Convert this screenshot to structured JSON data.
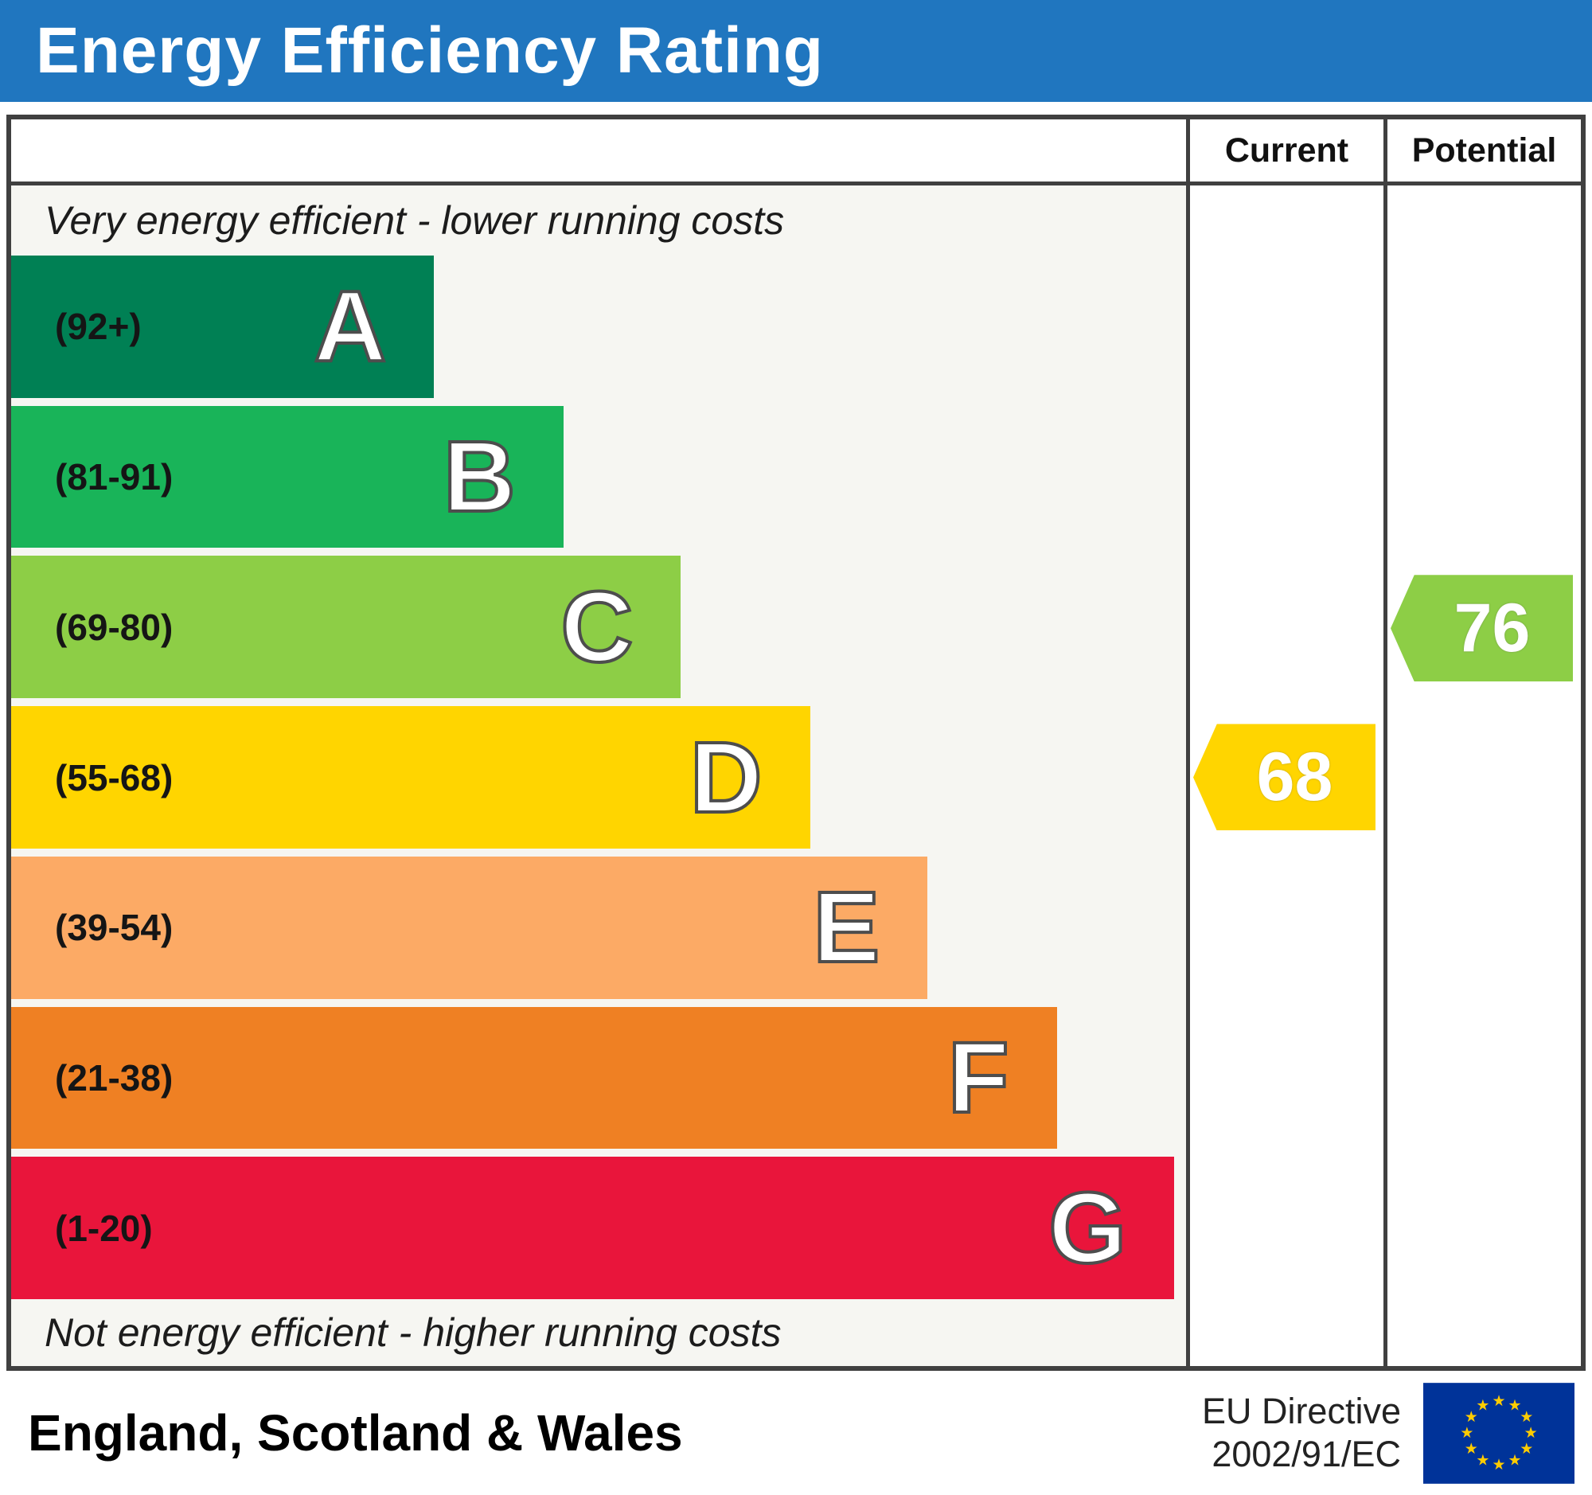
{
  "header": {
    "title": "Energy Efficiency Rating"
  },
  "table": {
    "column_headers": {
      "current": "Current",
      "potential": "Potential"
    },
    "caption_top": "Very energy efficient - lower running costs",
    "caption_bottom": "Not energy efficient - higher running costs"
  },
  "chart_data": {
    "type": "bar",
    "title": "Energy Efficiency Rating",
    "bands": [
      {
        "letter": "A",
        "range": "(92+)",
        "color": "#008054",
        "width_pct": 36
      },
      {
        "letter": "B",
        "range": "(81-91)",
        "color": "#19b459",
        "width_pct": 47
      },
      {
        "letter": "C",
        "range": "(69-80)",
        "color": "#8dce46",
        "width_pct": 57
      },
      {
        "letter": "D",
        "range": "(55-68)",
        "color": "#ffd500",
        "width_pct": 68
      },
      {
        "letter": "E",
        "range": "(39-54)",
        "color": "#fcaa65",
        "width_pct": 78
      },
      {
        "letter": "F",
        "range": "(21-38)",
        "color": "#ef8023",
        "width_pct": 89
      },
      {
        "letter": "G",
        "range": "(1-20)",
        "color": "#e9153b",
        "width_pct": 99
      }
    ],
    "current": {
      "value": 68,
      "band": "D",
      "color": "#ffd500"
    },
    "potential": {
      "value": 76,
      "band": "C",
      "color": "#8dce46"
    }
  },
  "footer": {
    "region": "England, Scotland & Wales",
    "directive_line1": "EU Directive",
    "directive_line2": "2002/91/EC",
    "flag_icon": "eu-flag"
  },
  "colors": {
    "title_bar": "#2076bf",
    "border": "#404040",
    "flag_blue": "#003399",
    "star_gold": "#ffcc00"
  }
}
